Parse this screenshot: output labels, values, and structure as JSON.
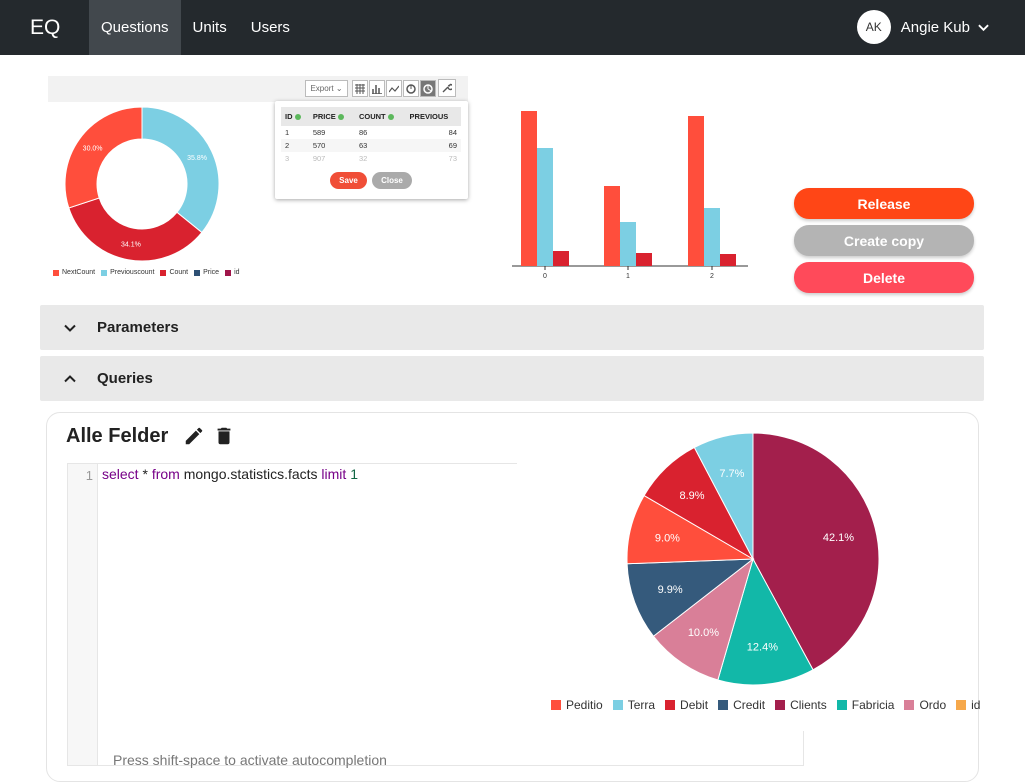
{
  "nav": {
    "brand": "EQ",
    "items": [
      {
        "label": "Questions",
        "active": true
      },
      {
        "label": "Units",
        "active": false
      },
      {
        "label": "Users",
        "active": false
      }
    ],
    "user": {
      "initials": "AK",
      "name": "Angie Kub"
    }
  },
  "preview": {
    "export_label": "Export",
    "tools": [
      "table-icon",
      "bar-chart-icon",
      "line-chart-icon",
      "donut-chart-icon",
      "pie-chart-icon"
    ],
    "table": {
      "columns": [
        "ID",
        "PRICE",
        "COUNT",
        "PREVIOUS"
      ],
      "rows": [
        [
          "1",
          "589",
          "86",
          "84"
        ],
        [
          "2",
          "570",
          "63",
          "69"
        ],
        [
          "3",
          "907",
          "32",
          "73"
        ]
      ]
    },
    "save_label": "Save",
    "close_label": "Close",
    "legend": [
      {
        "label": "NextCount",
        "color": "#ff4e3c"
      },
      {
        "label": "Previouscount",
        "color": "#7ccfe3"
      },
      {
        "label": "Count",
        "color": "#d9222f"
      },
      {
        "label": "Price",
        "color": "#2d5074"
      },
      {
        "label": "id",
        "color": "#a0154a"
      }
    ]
  },
  "chart_data": [
    {
      "type": "pie",
      "subtype": "donut",
      "labels": [
        "Previouscount",
        "Count",
        "NextCount"
      ],
      "values": [
        35.8,
        34.1,
        30.0
      ],
      "value_labels": [
        "35.8%",
        "34.1%",
        "30.0%"
      ],
      "colors": [
        "#7ccfe3",
        "#d9222f",
        "#ff4e3c"
      ]
    },
    {
      "type": "bar",
      "categories": [
        "0",
        "1",
        "2"
      ],
      "series": [
        {
          "values": [
            155,
            80,
            150
          ],
          "color": "#ff4e3c"
        },
        {
          "values": [
            118,
            44,
            58
          ],
          "color": "#7ccfe3"
        },
        {
          "values": [
            15,
            13,
            12
          ],
          "color": "#d9222f"
        }
      ],
      "ylim": [
        0,
        160
      ],
      "grid": false
    },
    {
      "type": "pie",
      "labels": [
        "Clients",
        "Fabricia",
        "Ordo",
        "Credit",
        "Peditio",
        "Debit",
        "Terra",
        "id"
      ],
      "values": [
        42.1,
        12.4,
        10.0,
        9.9,
        9.0,
        8.9,
        7.7,
        0
      ],
      "value_labels": [
        "42.1%",
        "12.4%",
        "10.0%",
        "9.9%",
        "9.0%",
        "8.9%",
        "7.7%",
        ""
      ],
      "colors": [
        "#a31f4c",
        "#12b8a8",
        "#d97f98",
        "#355a7c",
        "#ff4e3c",
        "#d9222f",
        "#7ccfe3",
        "#f6a84b"
      ],
      "legend": [
        {
          "label": "Peditio",
          "color": "#ff4e3c"
        },
        {
          "label": "Terra",
          "color": "#7ccfe3"
        },
        {
          "label": "Debit",
          "color": "#d9222f"
        },
        {
          "label": "Credit",
          "color": "#355a7c"
        },
        {
          "label": "Clients",
          "color": "#a31f4c"
        },
        {
          "label": "Fabricia",
          "color": "#12b8a8"
        },
        {
          "label": "Ordo",
          "color": "#d97f98"
        },
        {
          "label": "id",
          "color": "#f6a84b"
        }
      ]
    }
  ],
  "actions": {
    "release": {
      "label": "Release",
      "color": "#ff4616"
    },
    "copy": {
      "label": "Create copy",
      "color": "#b4b4b4"
    },
    "delete": {
      "label": "Delete",
      "color": "#ff4a5a"
    }
  },
  "sections": {
    "parameters": "Parameters",
    "queries": "Queries"
  },
  "query": {
    "title": "Alle Felder",
    "line_number": "1",
    "code": {
      "kw1": "select",
      "star": " * ",
      "kw2": "from",
      "table": " mongo.statistics.facts ",
      "kw3": "limit",
      "space": " ",
      "limit": "1"
    },
    "hint": "Press shift-space to activate autocompletion"
  }
}
